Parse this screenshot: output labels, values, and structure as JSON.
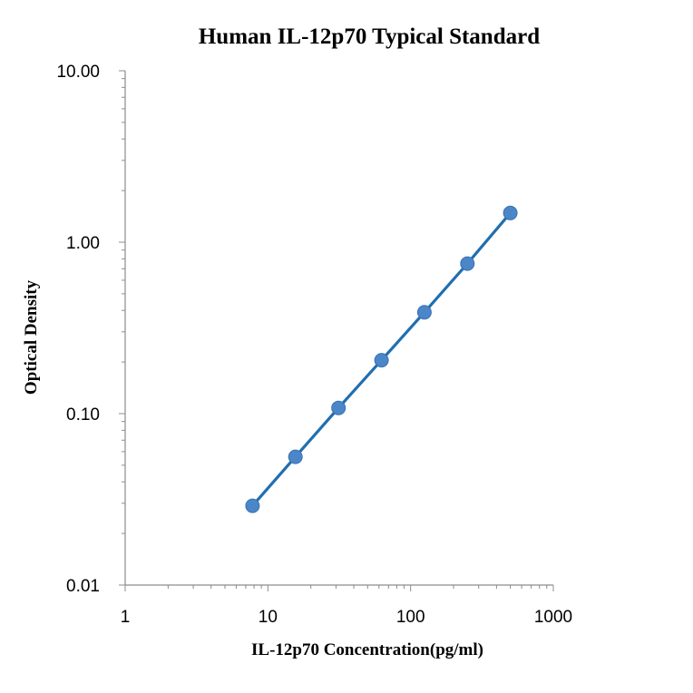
{
  "chart_data": {
    "type": "scatter",
    "title": "Human IL-12p70 Typical Standard",
    "xlabel": "IL-12p70 Concentration(pg/ml)",
    "ylabel": "Optical Density",
    "xscale": "log",
    "yscale": "log",
    "xlim": [
      1,
      1000
    ],
    "ylim": [
      0.01,
      10
    ],
    "x_ticks": [
      {
        "value": 1,
        "label": "1"
      },
      {
        "value": 10,
        "label": "10"
      },
      {
        "value": 100,
        "label": "100"
      },
      {
        "value": 1000,
        "label": "1000"
      }
    ],
    "y_ticks": [
      {
        "value": 0.01,
        "label": "0.01"
      },
      {
        "value": 0.1,
        "label": "0.10"
      },
      {
        "value": 1,
        "label": "1.00"
      },
      {
        "value": 10,
        "label": "10.00"
      }
    ],
    "grid": false,
    "legend": "none",
    "trendline": true,
    "colors": {
      "point": "#4a86c8",
      "line": "#1f6fb0"
    },
    "x": [
      7.8,
      15.6,
      31.25,
      62.5,
      125,
      250,
      500
    ],
    "y": [
      0.029,
      0.056,
      0.108,
      0.205,
      0.39,
      0.75,
      1.48
    ]
  }
}
